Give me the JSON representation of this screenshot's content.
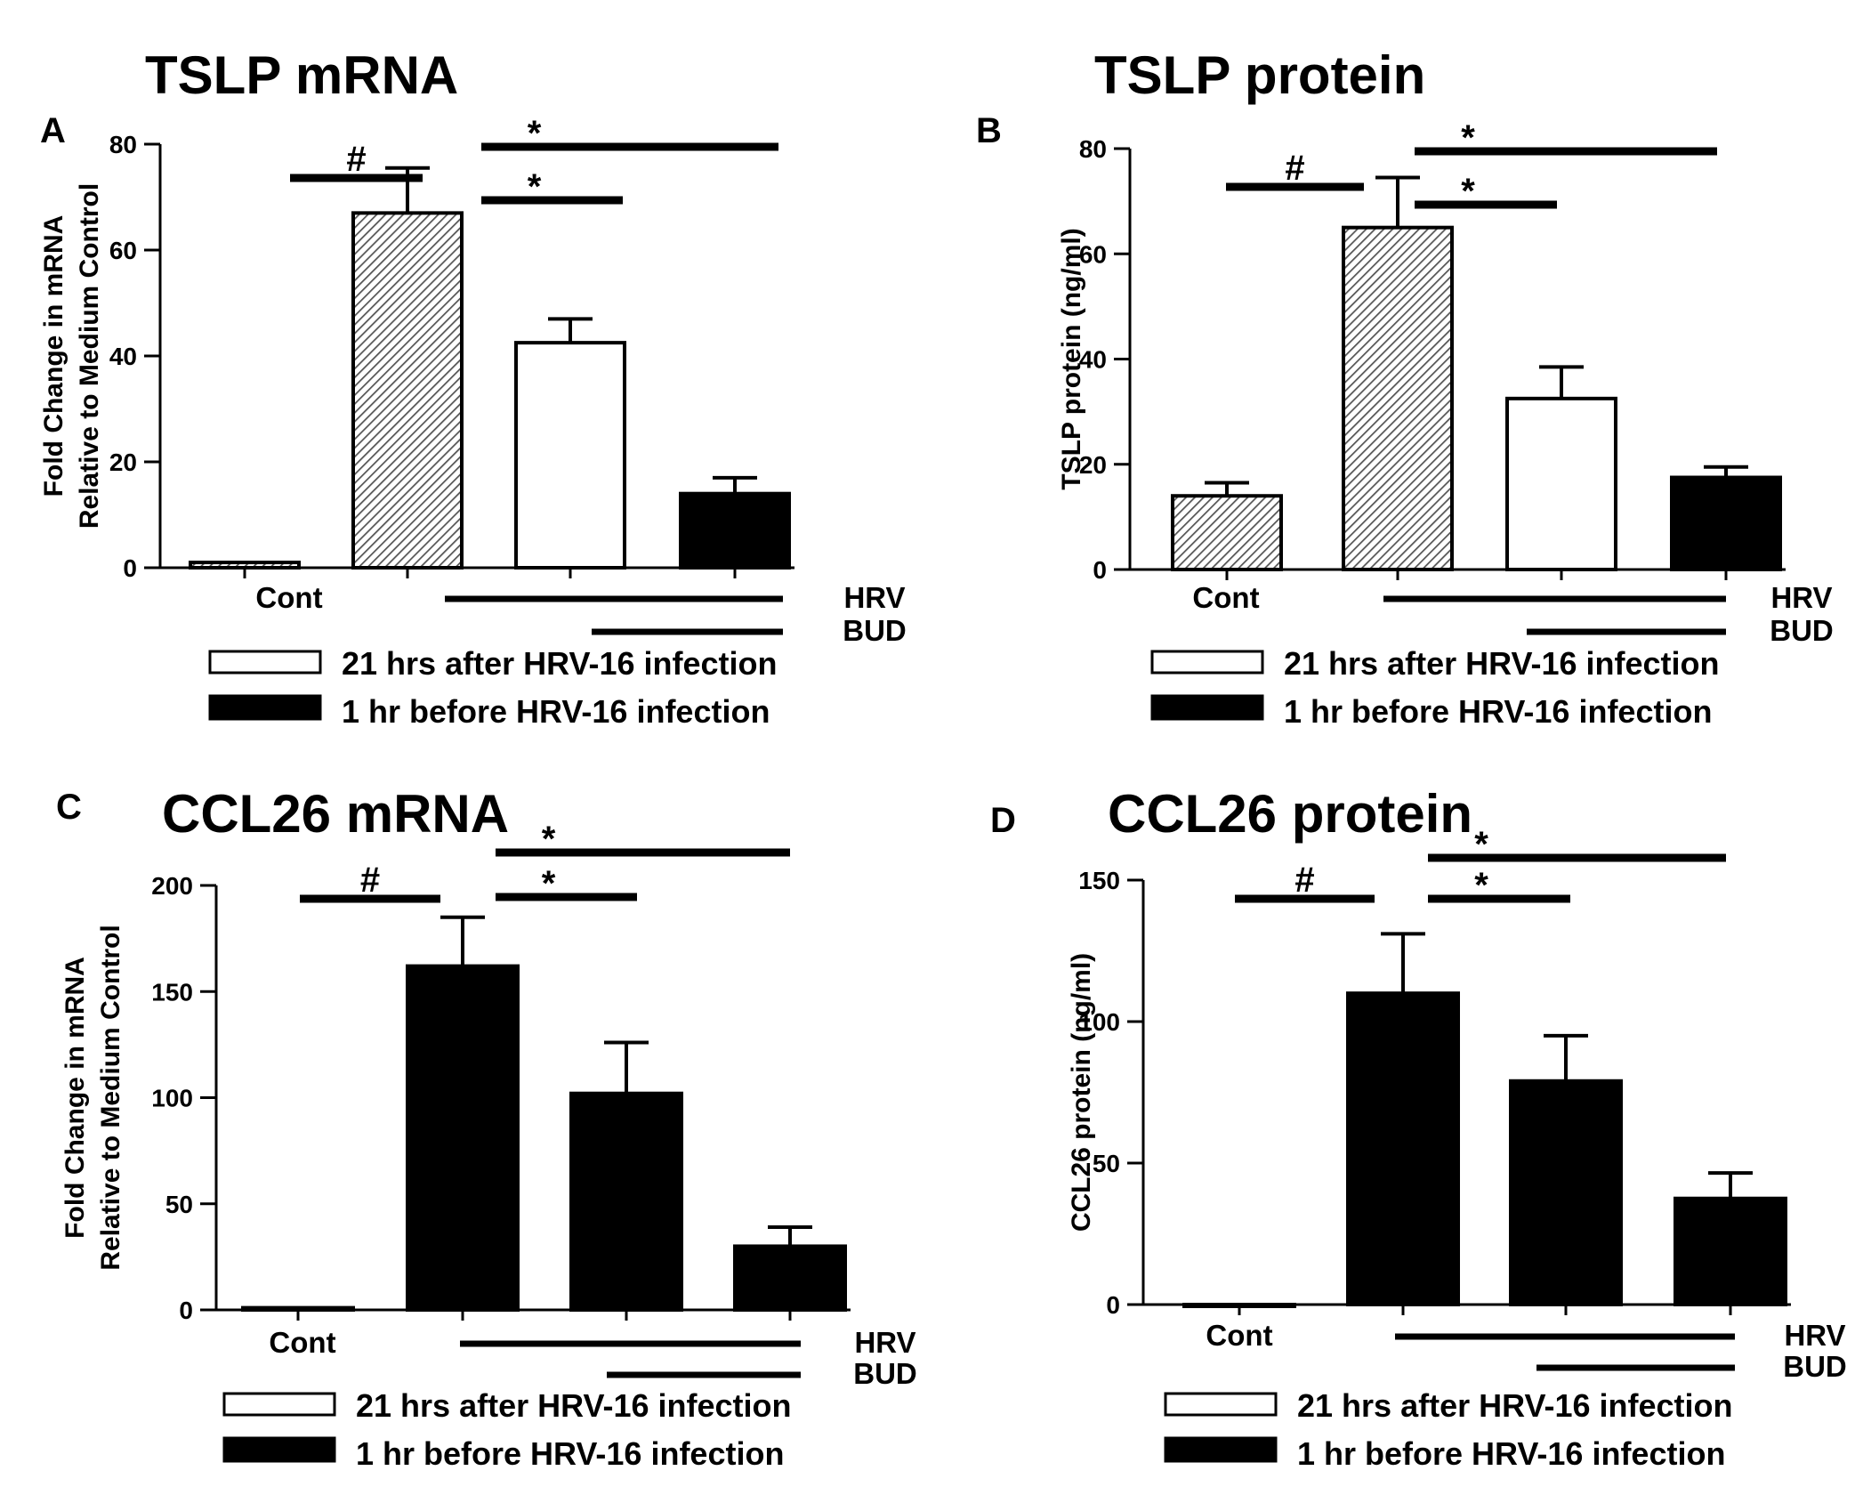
{
  "figure": {
    "colors": {
      "filled": "#000000",
      "open": "#ffffff",
      "stroke": "#000000",
      "hatch": "#555555"
    },
    "legend": {
      "open_label": "21 hrs after HRV-16 infection",
      "filled_label": "1 hr before HRV-16 infection"
    }
  },
  "chart_data": [
    {
      "panel": "A",
      "type": "bar",
      "title": "TSLP mRNA",
      "ylabel_line1": "Fold Change in mRNA",
      "ylabel_line2": "Relative to Medium Control",
      "ylim": [
        0,
        80
      ],
      "yticks": [
        "0",
        "20",
        "40",
        "60",
        "80"
      ],
      "categories": [
        "Cont",
        "HRV",
        "HRV+BUD (21 hrs after)",
        "HRV+BUD (1 hr before)"
      ],
      "cont_label": "Cont",
      "condition_labels": {
        "hrv": "HRV",
        "bud": "BUD"
      },
      "values": [
        1,
        67,
        42.5,
        14
      ],
      "errors": [
        0,
        8.5,
        4.5,
        3
      ],
      "fills": [
        "hatch",
        "hatch",
        "open",
        "filled"
      ],
      "annotations": {
        "hash": "#",
        "star_upper": "*",
        "star_lower": "*"
      }
    },
    {
      "panel": "B",
      "type": "bar",
      "title": "TSLP protein",
      "ylabel_line1": "TSLP protein (ng/ml)",
      "ylabel_line2": "",
      "ylim": [
        0,
        80
      ],
      "yticks": [
        "0",
        "20",
        "40",
        "60",
        "80"
      ],
      "categories": [
        "Cont",
        "HRV",
        "HRV+BUD (21 hrs after)",
        "HRV+BUD (1 hr before)"
      ],
      "cont_label": "Cont",
      "condition_labels": {
        "hrv": "HRV",
        "bud": "BUD"
      },
      "values": [
        14,
        65,
        32.5,
        17.5
      ],
      "errors": [
        2.5,
        9.5,
        6,
        2
      ],
      "fills": [
        "hatch",
        "hatch",
        "open",
        "filled"
      ],
      "annotations": {
        "hash": "#",
        "star_upper": "*",
        "star_lower": "*"
      }
    },
    {
      "panel": "C",
      "type": "bar",
      "title": "CCL26 mRNA",
      "ylabel_line1": "Fold Change in mRNA",
      "ylabel_line2": "Relative to Medium Control",
      "ylim": [
        0,
        200
      ],
      "yticks": [
        "0",
        "50",
        "100",
        "150",
        "200"
      ],
      "categories": [
        "Cont",
        "HRV",
        "HRV+BUD (21 hrs after)",
        "HRV+BUD (1 hr before)"
      ],
      "cont_label": "Cont",
      "condition_labels": {
        "hrv": "HRV",
        "bud": "BUD"
      },
      "values": [
        1,
        162,
        102,
        30
      ],
      "errors": [
        0,
        23,
        24,
        9
      ],
      "fills": [
        "filled",
        "filled",
        "filled",
        "filled"
      ],
      "annotations": {
        "hash": "#",
        "star_upper": "*",
        "star_lower": "*"
      }
    },
    {
      "panel": "D",
      "type": "bar",
      "title": "CCL26 protein",
      "ylabel_line1": "CCL26 protein (ng/ml)",
      "ylabel_line2": "",
      "ylim": [
        0,
        150
      ],
      "yticks": [
        "0",
        "50",
        "100",
        "150"
      ],
      "categories": [
        "Cont",
        "HRV",
        "HRV+BUD (21 hrs after)",
        "HRV+BUD (1 hr before)"
      ],
      "cont_label": "Cont",
      "condition_labels": {
        "hrv": "HRV",
        "bud": "BUD"
      },
      "values": [
        0,
        110,
        79,
        37.5
      ],
      "errors": [
        0,
        21,
        16,
        9
      ],
      "fills": [
        "filled",
        "filled",
        "filled",
        "filled"
      ],
      "annotations": {
        "hash": "#",
        "star_upper": "*",
        "star_lower": "*"
      }
    }
  ]
}
